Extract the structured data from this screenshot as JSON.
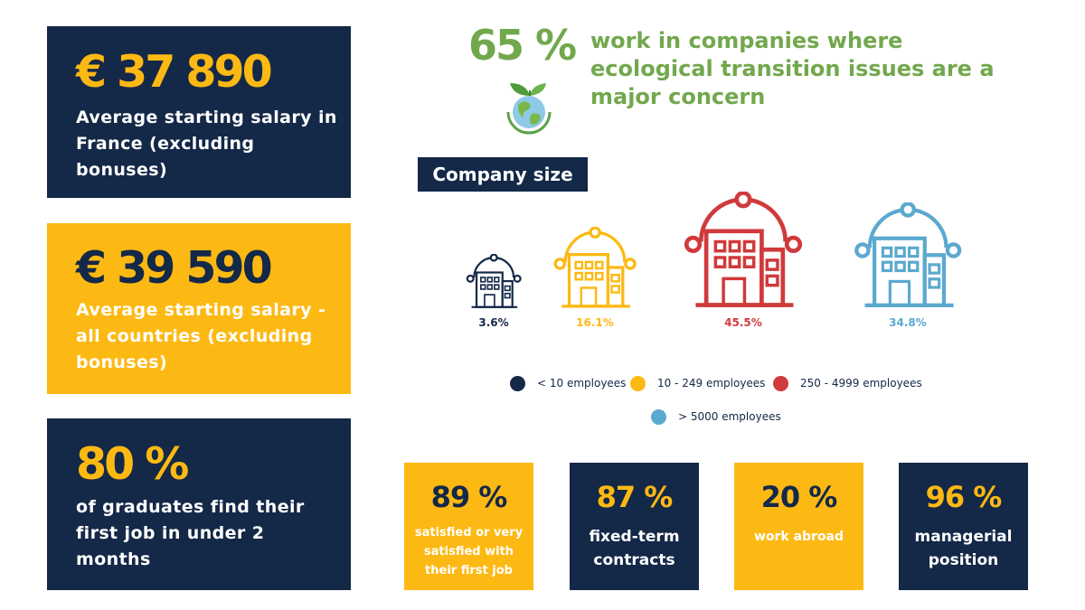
{
  "cards": {
    "france": {
      "value": "€ 37 890",
      "label": "Average starting salary in France (excluding bonuses)"
    },
    "all": {
      "value": "€ 39 590",
      "label": "Average starting salary - all countries (excluding bonuses)"
    },
    "jobs": {
      "value": "80 %",
      "label": "of graduates find their first job in under 2 months"
    }
  },
  "ecology": {
    "value": "65 %",
    "text": "work in companies where ecological transition issues are a major concern",
    "icon": "globe-leaves-icon",
    "color": "#72a84d"
  },
  "chart_data": {
    "type": "pictogram",
    "title": "Company size",
    "categories": [
      "< 10 employees",
      "10 - 249 employees",
      "250 - 4999 employees",
      "> 5000 employees"
    ],
    "values": [
      3.6,
      16.1,
      45.5,
      34.8
    ],
    "value_labels": [
      "3.6%",
      "16.1%",
      "45.5%",
      "34.8%"
    ],
    "unit": "%",
    "colors": [
      "#142848",
      "#fdb913",
      "#d03a3c",
      "#5ba9cf"
    ],
    "icon": "building-icon",
    "legend_position": "bottom"
  },
  "stats": [
    {
      "value": "89 %",
      "label": "satisfied or very satisfied with their first job"
    },
    {
      "value": "87 %",
      "label": "fixed-term contracts"
    },
    {
      "value": "20 %",
      "label": "work abroad"
    },
    {
      "value": "96 %",
      "label": "managerial position"
    }
  ],
  "colors": {
    "navy": "#142848",
    "yellow": "#fdb913",
    "green": "#72a84d"
  }
}
